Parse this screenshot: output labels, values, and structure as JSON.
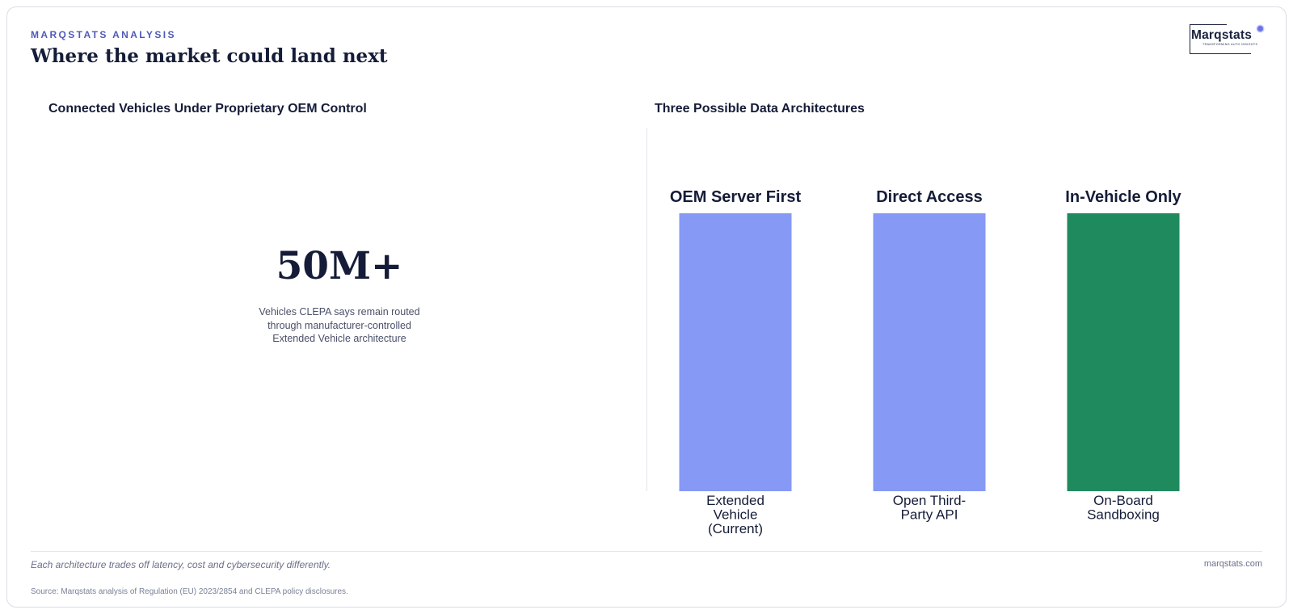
{
  "header": {
    "kicker": "MARQSTATS ANALYSIS",
    "title": "Where the market could land next"
  },
  "logo": {
    "wordmark": "Marqstats",
    "tagline": "TRANSFORMING AUTO INSIGHTS",
    "dot_color": "#6b74e6"
  },
  "left_panel": {
    "title": "Connected Vehicles Under Proprietary OEM Control",
    "stat_value": "50M+",
    "stat_caption": "Vehicles CLEPA says remain routed through manufacturer-controlled Extended Vehicle architecture"
  },
  "right_panel": {
    "title": "Three Possible Data Architectures"
  },
  "chart_data": {
    "type": "bar",
    "title": "Three Possible Data Architectures",
    "categories": [
      "Extended Vehicle (Current)",
      "Open Third-Party API",
      "On-Board Sandboxing"
    ],
    "category_lines": [
      [
        "Extended",
        "Vehicle",
        "(Current)"
      ],
      [
        "Open Third-",
        "Party API"
      ],
      [
        "On-Board",
        "Sandboxing"
      ]
    ],
    "top_labels": [
      "OEM Server First",
      "Direct Access",
      "In-Vehicle Only"
    ],
    "values": [
      1,
      1,
      1
    ],
    "colors": [
      "#8599f5",
      "#8599f5",
      "#1f8a5e"
    ],
    "ylim": [
      0,
      1
    ],
    "grid": false,
    "legend": "none"
  },
  "footer": {
    "note": "Each architecture trades off latency, cost and cybersecurity differently.",
    "site": "marqstats.com",
    "source": "Source: Marqstats analysis of Regulation (EU) 2023/2854 and CLEPA policy disclosures."
  }
}
